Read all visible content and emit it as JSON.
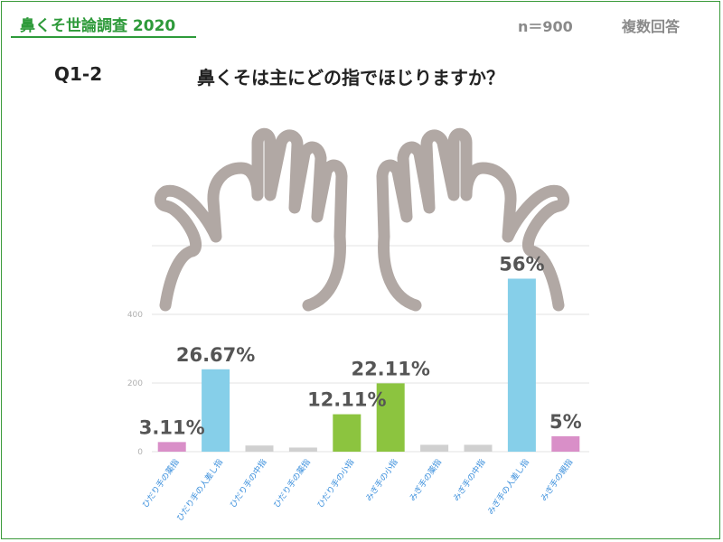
{
  "header": {
    "series_title": "鼻くそ世論調査 2020",
    "sample_size": "n＝900",
    "answer_type": "複数回答"
  },
  "question": {
    "number": "Q1-2",
    "text": "鼻くそは主にどの指でほじりますか？"
  },
  "chart_data": {
    "type": "bar",
    "categories": [
      "ひだり手の薬指",
      "ひだり手の人差し指",
      "ひだり手の中指",
      "ひだり手の薬指",
      "ひだり手の小指",
      "みぎ手の小指",
      "みぎ手の薬指",
      "みぎ手の中指",
      "みぎ手の人差し指",
      "みぎ手の親指"
    ],
    "values": [
      28,
      240,
      18,
      12,
      109,
      199,
      20,
      20,
      504,
      45
    ],
    "data_labels": [
      "3.11%",
      "26.67%",
      "",
      "",
      "12.11%",
      "22.11%",
      "",
      "",
      "56%",
      "5%"
    ],
    "yticks": [
      0,
      200,
      400
    ],
    "ylim": [
      0,
      600
    ],
    "grid": true,
    "legend": "none",
    "colors": [
      "#d98fc8",
      "#86cfe9",
      "#d0d0d0",
      "#d0d0d0",
      "#8cc43f",
      "#8cc43f",
      "#d0d0d0",
      "#d0d0d0",
      "#86cfe9",
      "#d98fc8"
    ],
    "label_color": "#555555",
    "tick_color": "#b0b0b0",
    "category_color": "#3b8fdc"
  },
  "decoration": {
    "icons": [
      "left-hand-outline-icon",
      "right-hand-outline-icon"
    ],
    "hand_color": "#b1a8a4"
  }
}
